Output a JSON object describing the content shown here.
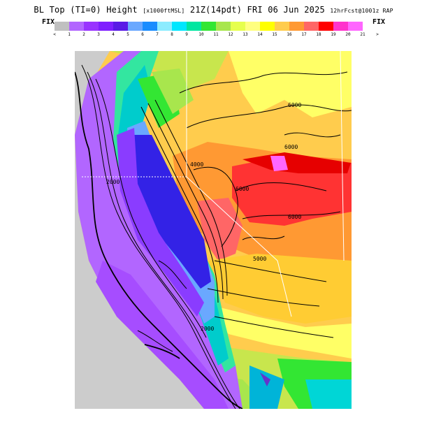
{
  "title": {
    "main_a": "BL Top (TI=0) Height",
    "units": "[x1000ftMSL]",
    "main_b": "21Z(14pdt) FRI 06 Jun 2025",
    "model": "12hrFcst@1001z RAP"
  },
  "colorbar": {
    "fix_left": "FIX",
    "fix_right": "FIX",
    "under_label": "<",
    "over_label": ">",
    "tick_labels": [
      "1",
      "2",
      "3",
      "4",
      "5",
      "6",
      "7",
      "8",
      "9",
      "10",
      "11",
      "12",
      "13",
      "14",
      "15",
      "16",
      "17",
      "18",
      "19",
      "20",
      "21"
    ],
    "colors": [
      "#c0c0c0",
      "#b266ff",
      "#9933ff",
      "#7f1fff",
      "#5a1ae6",
      "#6aa8ff",
      "#1a8cff",
      "#8cecff",
      "#00e6ff",
      "#00e6a0",
      "#33e633",
      "#a8e64d",
      "#e6ff4d",
      "#ffff80",
      "#ffff00",
      "#ffcc4d",
      "#ff9933",
      "#ff6666",
      "#ff0000",
      "#ff33cc",
      "#ff66ff"
    ]
  },
  "map": {
    "contour_labels": [
      "6000",
      "6000",
      "6000",
      "6000",
      "5000",
      "4000",
      "2000",
      "2000"
    ]
  }
}
